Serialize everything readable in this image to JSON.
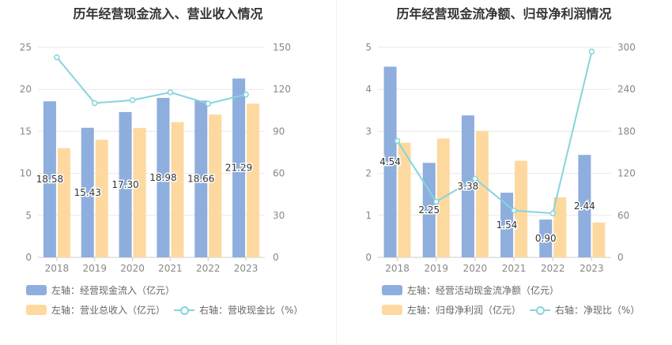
{
  "chart_data": [
    {
      "type": "bar",
      "title": "历年经营现金流入、营业收入情况",
      "categories": [
        "2018",
        "2019",
        "2020",
        "2021",
        "2022",
        "2023"
      ],
      "left_axis": {
        "min": 0,
        "max": 25,
        "ticks": [
          "0",
          "5",
          "10",
          "15",
          "20",
          "25"
        ]
      },
      "right_axis": {
        "min": 0,
        "max": 150,
        "ticks": [
          "0",
          "30",
          "60",
          "90",
          "120",
          "150"
        ]
      },
      "series": [
        {
          "name": "左轴：经营现金流入（亿元）",
          "kind": "bar",
          "axis": "left",
          "color": "#8eaedd",
          "values": [
            18.58,
            15.43,
            17.3,
            18.98,
            18.66,
            21.29
          ],
          "labels": [
            "18.58",
            "15.43",
            "17.30",
            "18.98",
            "18.66",
            "21.29"
          ]
        },
        {
          "name": "左轴：营业总收入（亿元）",
          "kind": "bar",
          "axis": "left",
          "color": "#fdd9a0",
          "values": [
            13.0,
            14.0,
            15.4,
            16.1,
            17.0,
            18.3
          ]
        },
        {
          "name": "右轴：营收现金比（%）",
          "kind": "line",
          "axis": "right",
          "color": "#86d4dc",
          "values": [
            142.9,
            110.2,
            112.3,
            117.9,
            109.8,
            116.3
          ]
        }
      ]
    },
    {
      "type": "bar",
      "title": "历年经营现金流净额、归母净利润情况",
      "categories": [
        "2018",
        "2019",
        "2020",
        "2021",
        "2022",
        "2023"
      ],
      "left_axis": {
        "min": 0,
        "max": 5,
        "ticks": [
          "0",
          "1",
          "2",
          "3",
          "4",
          "5"
        ]
      },
      "right_axis": {
        "min": 0,
        "max": 300,
        "ticks": [
          "0",
          "60",
          "120",
          "180",
          "240",
          "300"
        ]
      },
      "series": [
        {
          "name": "左轴：经营活动现金流净额（亿元）",
          "kind": "bar",
          "axis": "left",
          "color": "#8eaedd",
          "values": [
            4.54,
            2.25,
            3.38,
            1.54,
            0.9,
            2.44
          ],
          "labels": [
            "4.54",
            "2.25",
            "3.38",
            "1.54",
            "0.90",
            "2.44"
          ]
        },
        {
          "name": "左轴：归母净利润（亿元）",
          "kind": "bar",
          "axis": "left",
          "color": "#fdd9a0",
          "values": [
            2.73,
            2.83,
            3.01,
            2.3,
            1.43,
            0.83
          ]
        },
        {
          "name": "右轴：净现比（%）",
          "kind": "line",
          "axis": "right",
          "color": "#86d4dc",
          "values": [
            166.3,
            79.5,
            112.3,
            67.0,
            62.9,
            294.0
          ]
        }
      ]
    }
  ]
}
